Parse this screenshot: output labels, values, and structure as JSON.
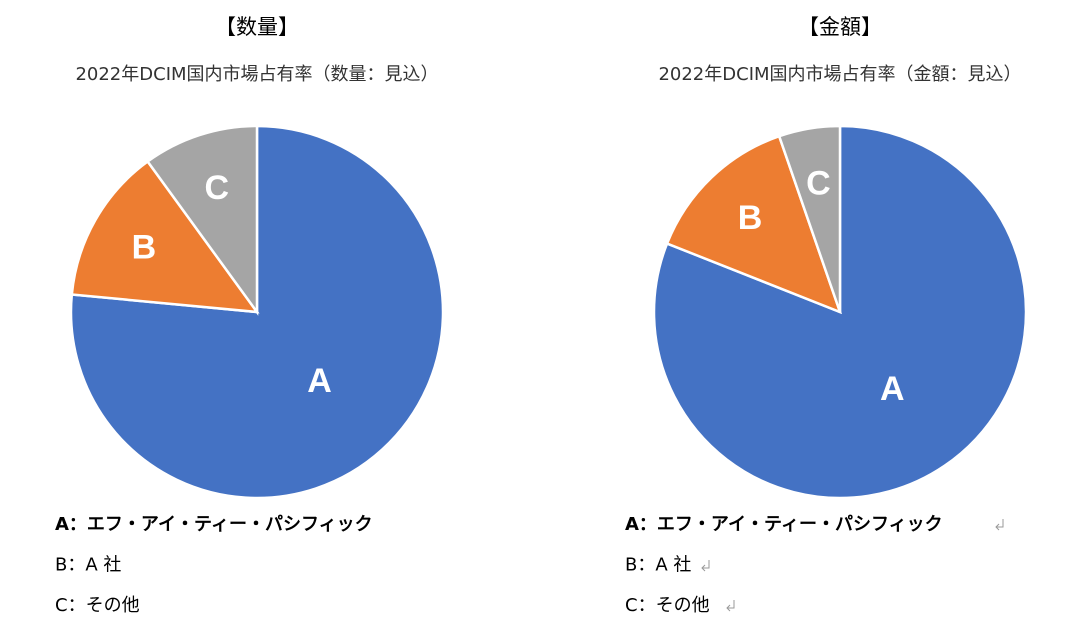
{
  "chart_data": [
    {
      "type": "pie",
      "heading": "【数量】",
      "title": "2022年DCIM国内市場占有率（数量：見込）",
      "categories": [
        "A",
        "B",
        "C"
      ],
      "values": [
        76.5,
        13.5,
        10
      ],
      "colors": [
        "#4472c4",
        "#ed7d31",
        "#a5a5a5"
      ],
      "legend": [
        "A：エフ・アイ・ティー・パシフィック",
        "B：A 社",
        "C：その他"
      ]
    },
    {
      "type": "pie",
      "heading": "【金額】",
      "title": "2022年DCIM国内市場占有率（金額：見込）",
      "categories": [
        "A",
        "B",
        "C"
      ],
      "values": [
        81,
        13.7,
        5.3
      ],
      "colors": [
        "#4472c4",
        "#ed7d31",
        "#a5a5a5"
      ],
      "legend": [
        "A：エフ・アイ・ティー・パシフィック",
        "B：A 社",
        "C：その他"
      ]
    }
  ]
}
